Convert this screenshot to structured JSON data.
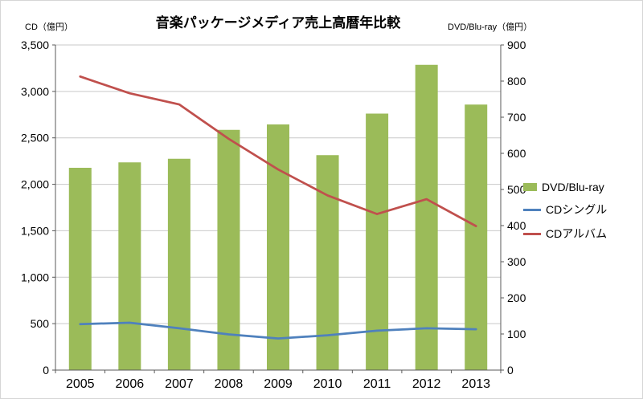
{
  "chart_data": {
    "type": "combo",
    "title": "音楽パッケージメディア売上高暦年比較",
    "grid": true,
    "legend_position": "right",
    "left_axis": {
      "label": "CD（億円）",
      "min": 0,
      "max": 3500,
      "step": 500,
      "tick_labels": [
        "0",
        "500",
        "1,000",
        "1,500",
        "2,000",
        "2,500",
        "3,000",
        "3,500"
      ]
    },
    "right_axis": {
      "label": "DVD/Blu-ray（億円）",
      "min": 0,
      "max": 900,
      "step": 100,
      "tick_labels": [
        "0",
        "100",
        "200",
        "300",
        "400",
        "500",
        "600",
        "700",
        "800",
        "900"
      ]
    },
    "categories": [
      "2005",
      "2006",
      "2007",
      "2008",
      "2009",
      "2010",
      "2011",
      "2012",
      "2013"
    ],
    "series": [
      {
        "name": "DVD/Blu-ray",
        "type": "bar",
        "axis": "right",
        "color": "#9bbb59",
        "values": [
          560,
          575,
          585,
          665,
          680,
          595,
          710,
          845,
          735
        ]
      },
      {
        "name": "CDシングル",
        "type": "line",
        "axis": "left",
        "color": "#4f81bd",
        "values": [
          495,
          510,
          450,
          385,
          340,
          375,
          425,
          450,
          440
        ]
      },
      {
        "name": "CDアルバム",
        "type": "line",
        "axis": "left",
        "color": "#c0504d",
        "values": [
          3160,
          2980,
          2860,
          2490,
          2160,
          1880,
          1680,
          1840,
          1550
        ]
      }
    ]
  }
}
